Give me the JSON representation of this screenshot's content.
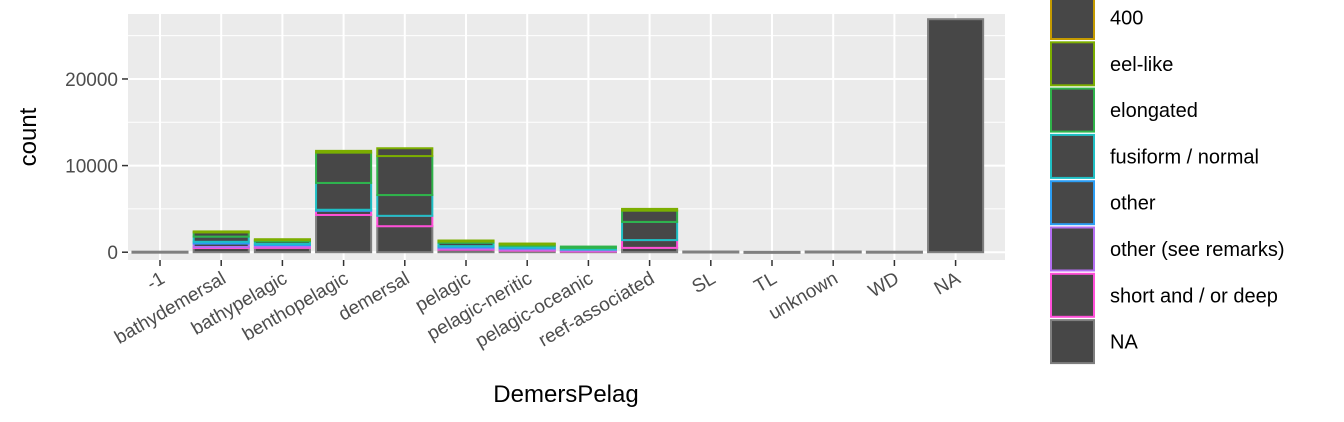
{
  "chart_data": {
    "type": "bar",
    "stacked": true,
    "xlabel": "DemersPelag",
    "ylabel": "count",
    "ylim": [
      -900,
      27500
    ],
    "yticks": [
      0,
      10000,
      20000
    ],
    "ytick_labels": [
      "0",
      "10000",
      "20000"
    ],
    "grid": true,
    "legend_position": "right",
    "categories": [
      "-1",
      "bathydemersal",
      "bathypelagic",
      "benthopelagic",
      "demersal",
      "pelagic",
      "pelagic-neritic",
      "pelagic-oceanic",
      "reef-associated",
      "SL",
      "TL",
      "unknown",
      "WD",
      "NA"
    ],
    "series": [
      {
        "name": "NA",
        "color": "#7f7f7f",
        "values": [
          60,
          500,
          500,
          4300,
          3000,
          300,
          200,
          150,
          500,
          80,
          40,
          80,
          60,
          26900
        ]
      },
      {
        "name": "short and / or deep",
        "color": "#ff4fd8",
        "values": [
          0,
          100,
          150,
          500,
          1200,
          100,
          100,
          50,
          900,
          0,
          0,
          0,
          0,
          0
        ]
      },
      {
        "name": "other (see remarks)",
        "color": "#b46ef2",
        "values": [
          0,
          400,
          200,
          0,
          0,
          150,
          150,
          100,
          0,
          0,
          0,
          0,
          0,
          0
        ]
      },
      {
        "name": "other",
        "color": "#2b9df4",
        "values": [
          0,
          200,
          100,
          100,
          0,
          150,
          100,
          0,
          0,
          0,
          0,
          0,
          0,
          0
        ]
      },
      {
        "name": "fusiform / normal",
        "color": "#1fbfc4",
        "values": [
          0,
          600,
          300,
          3100,
          2400,
          400,
          200,
          200,
          2100,
          0,
          0,
          0,
          0,
          0
        ]
      },
      {
        "name": "elongated",
        "color": "#2fb34a",
        "values": [
          0,
          500,
          150,
          3500,
          4500,
          200,
          200,
          150,
          1300,
          0,
          0,
          0,
          0,
          0
        ]
      },
      {
        "name": "eel-like",
        "color": "#7cae00",
        "values": [
          0,
          100,
          100,
          200,
          900,
          50,
          50,
          0,
          200,
          0,
          0,
          0,
          0,
          0
        ]
      },
      {
        "name": "400",
        "color": "#c49a00",
        "values": [
          0,
          0,
          0,
          0,
          0,
          0,
          0,
          0,
          0,
          0,
          0,
          0,
          0,
          0
        ]
      }
    ],
    "legend_order": [
      "400",
      "eel-like",
      "elongated",
      "fusiform / normal",
      "other",
      "other (see remarks)",
      "short and / or deep",
      "NA"
    ],
    "bar_fill": "#474747",
    "panel_background": "#ebebeb"
  }
}
